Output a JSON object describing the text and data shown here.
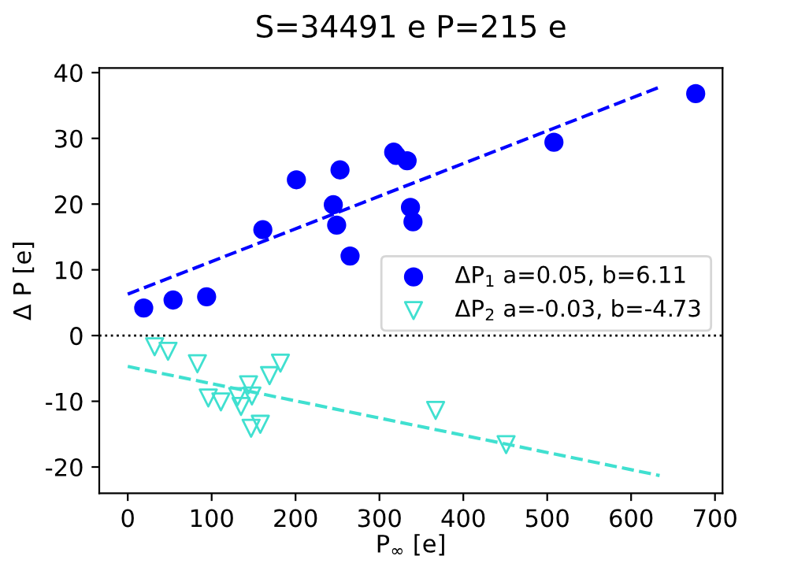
{
  "chart_data": {
    "type": "scatter",
    "title": "S=34491 e P=215 e",
    "xlabel": "P$_{∞}$ [e]",
    "ylabel": "Δ P [e]",
    "xlim": [
      -34,
      709
    ],
    "ylim": [
      -24,
      40.7
    ],
    "xticks": [
      0,
      100,
      200,
      300,
      400,
      500,
      600,
      700
    ],
    "yticks": [
      -20,
      -10,
      0,
      10,
      20,
      30,
      40
    ],
    "grid": false,
    "legend": "right",
    "ref_lines": [
      {
        "axis": "y",
        "value": 0,
        "color": "#000000",
        "line_style": "dotted"
      }
    ],
    "series": [
      {
        "name": "ΔP$_{1}$ a=0.05, b=6.11",
        "marker": "circle",
        "color": "#0000ff",
        "x": [
          19,
          54,
          94,
          161,
          201,
          253,
          245,
          249,
          265,
          317,
          320,
          333,
          337,
          340,
          508,
          677
        ],
        "values": [
          4.2,
          5.4,
          5.9,
          16.1,
          23.7,
          25.2,
          19.9,
          16.8,
          12.1,
          27.9,
          27.4,
          26.6,
          19.5,
          17.3,
          29.4,
          36.8
        ]
      },
      {
        "name": "ΔP$_{2}$ a=-0.03, b=-4.73",
        "marker": "triangle",
        "color": "#40e0d0",
        "x": [
          32,
          48,
          83,
          96,
          111,
          144,
          131,
          135,
          148,
          147,
          158,
          169,
          182,
          367,
          451
        ],
        "values": [
          -1.7,
          -2.4,
          -4.3,
          -9.5,
          -10.1,
          -7.5,
          -9.3,
          -10.8,
          -9.2,
          -14.1,
          -13.5,
          -6.1,
          -4.2,
          -11.4,
          -16.6
        ]
      },
      {
        "type": "line",
        "line_style": "dashed",
        "color": "#0000ff",
        "x": [
          0,
          634
        ],
        "values": [
          6.3,
          37.8
        ]
      },
      {
        "type": "line",
        "line_style": "dashed",
        "color": "#40e0d0",
        "x": [
          0,
          634
        ],
        "values": [
          -4.7,
          -21.3
        ]
      }
    ]
  }
}
